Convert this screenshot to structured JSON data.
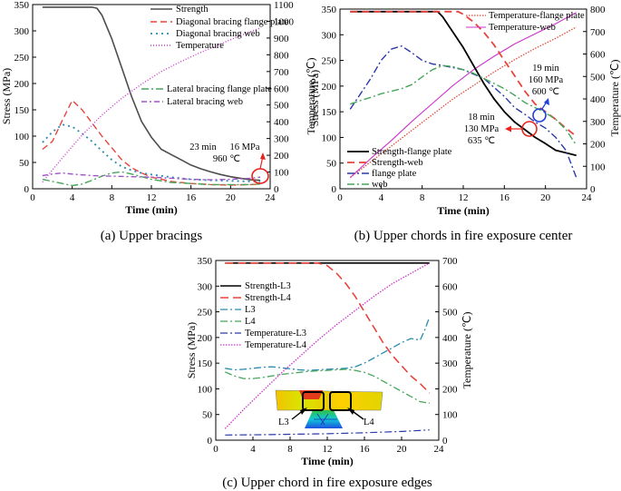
{
  "chart_data": [
    {
      "type": "line",
      "id": "a",
      "caption": "(a) Upper bracings",
      "xlabel": "Time (min)",
      "ylabel": "Stress (MPa)",
      "y2label": "Temperature (℃)",
      "xlim": [
        0,
        24
      ],
      "ylim": [
        0,
        350
      ],
      "y2lim": [
        0,
        1100
      ],
      "xticks": [
        0,
        4,
        8,
        12,
        16,
        20,
        24
      ],
      "yticks": [
        0,
        50,
        100,
        150,
        200,
        250,
        300,
        350
      ],
      "y2ticks": [
        0,
        100,
        200,
        300,
        400,
        500,
        600,
        700,
        800,
        900,
        1000,
        1100
      ],
      "series": [
        {
          "name": "Strength",
          "axis": "left",
          "color": "#4d4d4d",
          "dash": "",
          "width": 1.6,
          "x": [
            1,
            2,
            3,
            4,
            5,
            6,
            6.5,
            7,
            8,
            9,
            10,
            11,
            12,
            13,
            14,
            15,
            16,
            17,
            18,
            19,
            20,
            21,
            22,
            23
          ],
          "y": [
            345,
            345,
            345,
            345,
            345,
            345,
            343,
            330,
            285,
            230,
            175,
            128,
            98,
            75,
            65,
            55,
            45,
            38,
            32,
            27,
            23,
            20,
            17,
            16
          ]
        },
        {
          "name": "Diagonal bracing flange plate",
          "axis": "left",
          "color": "#e8433b",
          "dash": "7,4",
          "width": 1.4,
          "x": [
            1,
            2,
            3,
            4,
            5,
            6,
            7,
            8,
            9,
            10,
            11,
            12,
            14,
            16,
            18,
            20,
            22,
            23
          ],
          "y": [
            75,
            90,
            130,
            168,
            150,
            125,
            100,
            78,
            55,
            40,
            30,
            22,
            14,
            10,
            8,
            7,
            8,
            9
          ]
        },
        {
          "name": "Diagonal bracing web",
          "axis": "left",
          "color": "#2a8ab0",
          "dash": "2,4",
          "width": 1.8,
          "x": [
            1,
            2,
            3,
            4,
            5,
            6,
            7,
            8,
            9,
            10,
            11,
            12,
            14,
            16,
            18,
            20,
            22,
            23
          ],
          "y": [
            88,
            108,
            122,
            118,
            105,
            90,
            72,
            55,
            42,
            35,
            30,
            27,
            22,
            18,
            16,
            15,
            14,
            14
          ]
        },
        {
          "name": "Temperature",
          "axis": "right",
          "color": "#cc33cc",
          "dash": "1,2",
          "width": 1.4,
          "x": [
            1,
            3,
            5,
            7,
            9,
            11,
            13,
            15,
            17,
            19,
            21,
            23
          ],
          "y": [
            40,
            185,
            320,
            440,
            540,
            625,
            700,
            760,
            815,
            865,
            915,
            960
          ]
        },
        {
          "name": "Lateral bracing flange plate",
          "axis": "left",
          "color": "#46a65a",
          "dash": "8,3,2,3",
          "width": 1.4,
          "x": [
            1,
            2,
            3,
            4,
            5,
            6,
            7,
            8,
            9,
            10,
            12,
            14,
            16,
            18,
            20,
            22,
            23
          ],
          "y": [
            18,
            14,
            10,
            6,
            9,
            16,
            24,
            30,
            32,
            28,
            18,
            12,
            10,
            8,
            8,
            8,
            9
          ]
        },
        {
          "name": "Lateral bracing web",
          "axis": "left",
          "color": "#a054c8",
          "dash": "6,3,2,3",
          "width": 1.4,
          "x": [
            1,
            2,
            3,
            4,
            6,
            8,
            10,
            12,
            14,
            16,
            18,
            20,
            22,
            23
          ],
          "y": [
            25,
            28,
            30,
            28,
            25,
            24,
            23,
            22,
            20,
            18,
            17,
            18,
            20,
            22
          ]
        }
      ],
      "annotations": [
        {
          "line1": "23 min",
          "line2": "16 MPa",
          "line3": "960 ℃",
          "at_x": 23,
          "at_y": 16
        }
      ]
    },
    {
      "type": "line",
      "id": "b",
      "caption": "(b) Upper chords in fire exposure center",
      "xlabel": "Time (min)",
      "ylabel": "Stress (MPa)",
      "y2label": "Temperature (℃)",
      "xlim": [
        0,
        24
      ],
      "ylim": [
        0,
        350
      ],
      "y2lim": [
        0,
        800
      ],
      "xticks": [
        0,
        4,
        8,
        12,
        16,
        20,
        24
      ],
      "yticks": [
        0,
        50,
        100,
        150,
        200,
        250,
        300,
        350
      ],
      "y2ticks": [
        0,
        100,
        200,
        300,
        400,
        500,
        600,
        700,
        800
      ],
      "series": [
        {
          "name": "Temperature-flange plate",
          "axis": "right",
          "color": "#e24a3a",
          "dash": "1.5,1.5",
          "width": 1.3,
          "x": [
            1,
            3,
            5,
            7,
            9,
            11,
            13,
            15,
            17,
            19,
            21,
            23
          ],
          "y": [
            50,
            120,
            190,
            260,
            330,
            400,
            460,
            520,
            575,
            625,
            670,
            720
          ]
        },
        {
          "name": "Temperature-web",
          "axis": "right",
          "color": "#cc33cc",
          "dash": "",
          "width": 1.1,
          "x": [
            1,
            3,
            5,
            7,
            9,
            11,
            13,
            15,
            17,
            19,
            21,
            23
          ],
          "y": [
            50,
            135,
            215,
            300,
            380,
            460,
            530,
            590,
            645,
            690,
            735,
            785
          ]
        },
        {
          "name": "Strength-flange plate",
          "axis": "left",
          "color": "#000000",
          "dash": "",
          "width": 1.8,
          "x": [
            1,
            2,
            4,
            6,
            8,
            9,
            9.5,
            10,
            11,
            12,
            13,
            14,
            15,
            16,
            17,
            18,
            19,
            20,
            21,
            22,
            23
          ],
          "y": [
            345,
            345,
            345,
            345,
            345,
            345,
            345,
            335,
            305,
            275,
            240,
            205,
            175,
            150,
            130,
            115,
            100,
            88,
            75,
            70,
            65
          ]
        },
        {
          "name": "Strength-web",
          "axis": "left",
          "color": "#e8433b",
          "dash": "8,5",
          "width": 1.8,
          "x": [
            1,
            4,
            8,
            10,
            11.5,
            12,
            13,
            14,
            15,
            16,
            17,
            18,
            19,
            20,
            21,
            22,
            23
          ],
          "y": [
            345,
            345,
            345,
            345,
            345,
            340,
            325,
            305,
            280,
            250,
            220,
            190,
            165,
            150,
            135,
            118,
            102
          ]
        },
        {
          "name": "flange plate",
          "axis": "left",
          "color": "#2c3aa8",
          "dash": "8,3,2,3",
          "width": 1.4,
          "x": [
            1,
            2,
            3,
            4,
            5,
            6,
            7,
            8,
            9,
            10,
            12,
            14,
            16,
            17,
            18,
            19,
            20,
            21,
            22,
            23
          ],
          "y": [
            155,
            185,
            215,
            250,
            272,
            278,
            265,
            250,
            243,
            240,
            232,
            215,
            180,
            158,
            145,
            130,
            118,
            100,
            75,
            22
          ]
        },
        {
          "name": "web",
          "axis": "left",
          "color": "#46a65a",
          "dash": "8,3,2,3",
          "width": 1.4,
          "x": [
            1,
            2,
            3,
            4,
            5,
            6,
            7,
            8,
            9,
            10,
            11,
            12,
            13,
            14,
            15,
            16,
            17,
            18,
            19,
            20,
            21,
            22,
            23
          ],
          "y": [
            165,
            172,
            178,
            185,
            190,
            195,
            203,
            218,
            232,
            240,
            238,
            232,
            225,
            215,
            205,
            195,
            182,
            168,
            158,
            148,
            135,
            115,
            85
          ]
        }
      ],
      "annotations": [
        {
          "line1": "19 min",
          "line2": "160 MPa",
          "line3": "600 ℃",
          "at_x": 19,
          "at_y": 160
        },
        {
          "line1": "18 min",
          "line2": "130 MPa",
          "line3": "635 ℃",
          "at_x": 18,
          "at_y": 130
        }
      ]
    },
    {
      "type": "line",
      "id": "c",
      "caption": "(c) Upper chord in fire exposure edges",
      "xlabel": "Time (min)",
      "ylabel": "Stress (MPa)",
      "y2label": "Temperature (℃)",
      "xlim": [
        0,
        24
      ],
      "ylim": [
        0,
        350
      ],
      "y2lim": [
        0,
        700
      ],
      "xticks": [
        0,
        4,
        8,
        12,
        16,
        20,
        24
      ],
      "yticks": [
        0,
        50,
        100,
        150,
        200,
        250,
        300,
        350
      ],
      "y2ticks": [
        0,
        100,
        200,
        300,
        400,
        500,
        600,
        700
      ],
      "inset_labels": [
        "L3",
        "L4"
      ],
      "series": [
        {
          "name": "Strength-L3",
          "axis": "left",
          "color": "#000000",
          "dash": "",
          "width": 1.6,
          "x": [
            1,
            23
          ],
          "y": [
            345,
            345
          ]
        },
        {
          "name": "Strength-L4",
          "axis": "left",
          "color": "#e8433b",
          "dash": "9,5",
          "width": 1.6,
          "x": [
            1,
            4,
            8,
            10,
            11,
            12,
            13,
            14,
            15,
            16,
            17,
            18,
            19,
            20,
            21,
            22,
            23
          ],
          "y": [
            345,
            345,
            345,
            345,
            345,
            340,
            325,
            305,
            280,
            250,
            220,
            190,
            165,
            145,
            125,
            110,
            92
          ]
        },
        {
          "name": "L3",
          "axis": "left",
          "color": "#2a8ab0",
          "dash": "8,3,2,3",
          "width": 1.3,
          "x": [
            1,
            2,
            3,
            4,
            5,
            6,
            7,
            8,
            9,
            10,
            11,
            12,
            13,
            14,
            15,
            16,
            17,
            18,
            19,
            20,
            21,
            22,
            22.5,
            23
          ],
          "y": [
            140,
            137,
            138,
            140,
            142,
            143,
            141,
            139,
            137,
            136,
            137,
            138,
            139,
            140,
            143,
            150,
            160,
            170,
            180,
            190,
            198,
            195,
            215,
            240
          ]
        },
        {
          "name": "L4",
          "axis": "left",
          "color": "#46a65a",
          "dash": "8,3,2,3",
          "width": 1.3,
          "x": [
            1,
            2,
            3,
            4,
            5,
            6,
            7,
            8,
            9,
            10,
            11,
            12,
            13,
            14,
            15,
            16,
            17,
            18,
            19,
            20,
            21,
            22,
            23
          ],
          "y": [
            133,
            125,
            120,
            120,
            122,
            125,
            128,
            130,
            132,
            134,
            135,
            136,
            137,
            138,
            136,
            132,
            125,
            115,
            105,
            95,
            85,
            75,
            72
          ]
        },
        {
          "name": "Temperature-L3",
          "axis": "right",
          "color": "#2c3aa8",
          "dash": "8,3,2,3",
          "width": 1.2,
          "x": [
            1,
            4,
            8,
            12,
            16,
            20,
            23
          ],
          "y": [
            20,
            21,
            23,
            25,
            29,
            34,
            40
          ]
        },
        {
          "name": "Temperature-L4",
          "axis": "right",
          "color": "#cc33cc",
          "dash": "1.5,1.5",
          "width": 1.3,
          "x": [
            1,
            3,
            5,
            7,
            9,
            11,
            13,
            15,
            17,
            19,
            21,
            23
          ],
          "y": [
            45,
            120,
            190,
            260,
            325,
            390,
            450,
            505,
            560,
            610,
            650,
            690
          ]
        }
      ]
    }
  ]
}
